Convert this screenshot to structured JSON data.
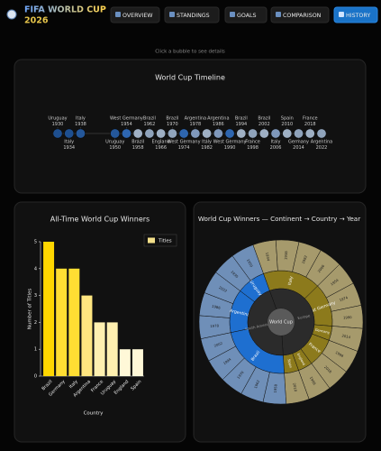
{
  "header": {
    "title": "FIFA WORLD CUP",
    "year": "2026"
  },
  "nav": {
    "items": [
      "OVERVIEW",
      "STANDINGS",
      "GOALS",
      "COMPARISON",
      "HISTORY"
    ],
    "active": 4
  },
  "hint": "Click a bubble to see details",
  "chart_data": [
    {
      "type": "timeline",
      "title": "World Cup Timeline",
      "x": [
        1930,
        1934,
        1938,
        1950,
        1954,
        1958,
        1962,
        1966,
        1970,
        1974,
        1978,
        1982,
        1986,
        1990,
        1994,
        1998,
        2002,
        2006,
        2010,
        2014,
        2018,
        2022
      ],
      "labels": [
        "Uruguay",
        "Italy",
        "Italy",
        "Uruguay",
        "West Germany",
        "Brazil",
        "Brazil",
        "England",
        "Brazil",
        "West Germany",
        "Argentina",
        "Italy",
        "Argentina",
        "West Germany",
        "Brazil",
        "France",
        "Brazil",
        "Italy",
        "Spain",
        "Germany",
        "France",
        "Argentina"
      ],
      "colors": [
        "#1e4f8f",
        "#1e4f8f",
        "#24579a",
        "#24579a",
        "#2e66b0",
        "#9fb0c4",
        "#8fa3bb",
        "#9fb0c4",
        "#8fa3bb",
        "#2e66b0",
        "#7f98bb",
        "#9fb0c4",
        "#7f98bb",
        "#2e66b0",
        "#9fb0c4",
        "#8fa3bb",
        "#9fb0c4",
        "#7f98bb",
        "#9fb0c4",
        "#8fa3bb",
        "#9fb0c4",
        "#8fa3bb"
      ]
    },
    {
      "type": "bar",
      "title": "All-Time World Cup Winners",
      "categories": [
        "Brazil",
        "Germany",
        "Italy",
        "Argentina",
        "France",
        "Uruguay",
        "England",
        "Spain"
      ],
      "series": [
        {
          "name": "Titles",
          "color": "#f3df8a",
          "values": [
            5,
            4,
            4,
            3,
            2,
            2,
            1,
            1
          ],
          "colors": [
            "#ffd700",
            "#ffde33",
            "#ffde33",
            "#ffe680",
            "#fff0b0",
            "#fff0b0",
            "#fff8d8",
            "#fff8d8"
          ]
        }
      ],
      "ylim": [
        0,
        5
      ],
      "yticks": [
        0,
        1,
        2,
        3,
        4,
        5
      ],
      "xlabel": "Country",
      "ylabel": "Number of Titles",
      "legend": "top-right"
    },
    {
      "type": "sunburst",
      "title": "World Cup Winners — Continent → Country → Year",
      "center": "World Cup",
      "children": [
        {
          "name": "Europe",
          "color": "#8c7a1c",
          "year_color": "#a69a6c",
          "children": [
            {
              "name": "Italy",
              "years": [
                1934,
                1938,
                1982,
                2006
              ]
            },
            {
              "name": "West Germany",
              "years": [
                1954,
                1974,
                1990
              ]
            },
            {
              "name": "Germany",
              "years": [
                2014
              ]
            },
            {
              "name": "France",
              "years": [
                1998,
                2018
              ]
            },
            {
              "name": "England",
              "years": [
                1966
              ]
            },
            {
              "name": "Spain",
              "years": [
                2010
              ]
            }
          ]
        },
        {
          "name": "South America",
          "color": "#1e6fd0",
          "year_color": "#6f8fb8",
          "children": [
            {
              "name": "Brazil",
              "years": [
                1958,
                1962,
                1970,
                1994,
                2002
              ]
            },
            {
              "name": "Argentina",
              "years": [
                1978,
                1986,
                2022
              ]
            },
            {
              "name": "Uruguay",
              "years": [
                1930,
                1950
              ]
            }
          ]
        }
      ]
    }
  ]
}
